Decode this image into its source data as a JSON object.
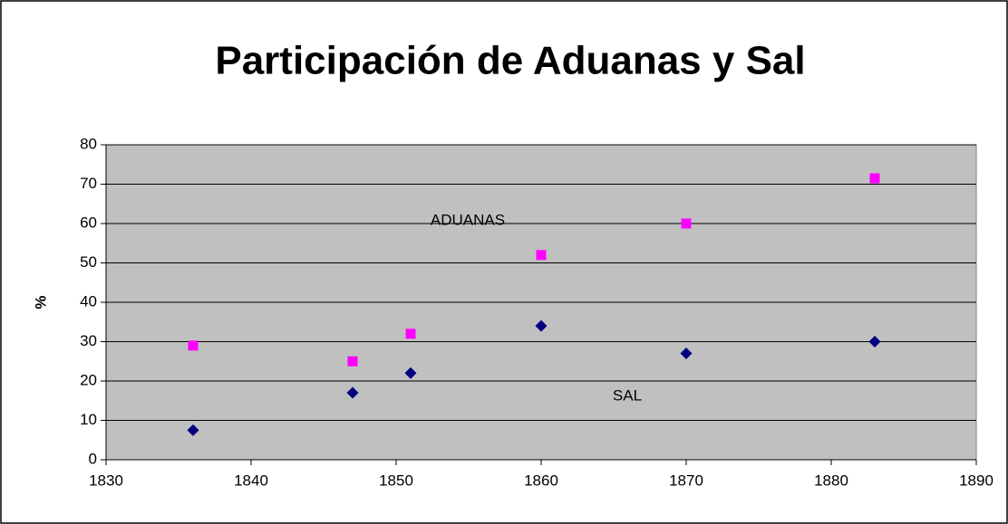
{
  "chart_data": {
    "type": "scatter",
    "title": "Participación de Aduanas y Sal",
    "ylabel": "%",
    "series": [
      {
        "name": "ADUANAS",
        "color": "#ff00ff",
        "marker": "square",
        "x": [
          1836,
          1847,
          1851,
          1860,
          1870,
          1883
        ],
        "values": [
          29,
          25,
          32,
          52,
          60,
          71.5
        ]
      },
      {
        "name": "SAL",
        "color": "#000080",
        "marker": "diamond",
        "x": [
          1836,
          1847,
          1851,
          1860,
          1870,
          1883
        ],
        "values": [
          7.5,
          17,
          22,
          34,
          27,
          30
        ]
      }
    ],
    "xlim": [
      1830,
      1890
    ],
    "xticks": [
      1830,
      1840,
      1850,
      1860,
      1870,
      1880,
      1890
    ],
    "ylim": [
      0,
      80
    ],
    "yticks": [
      0,
      10,
      20,
      30,
      40,
      50,
      60,
      70,
      80
    ],
    "grid": true
  }
}
